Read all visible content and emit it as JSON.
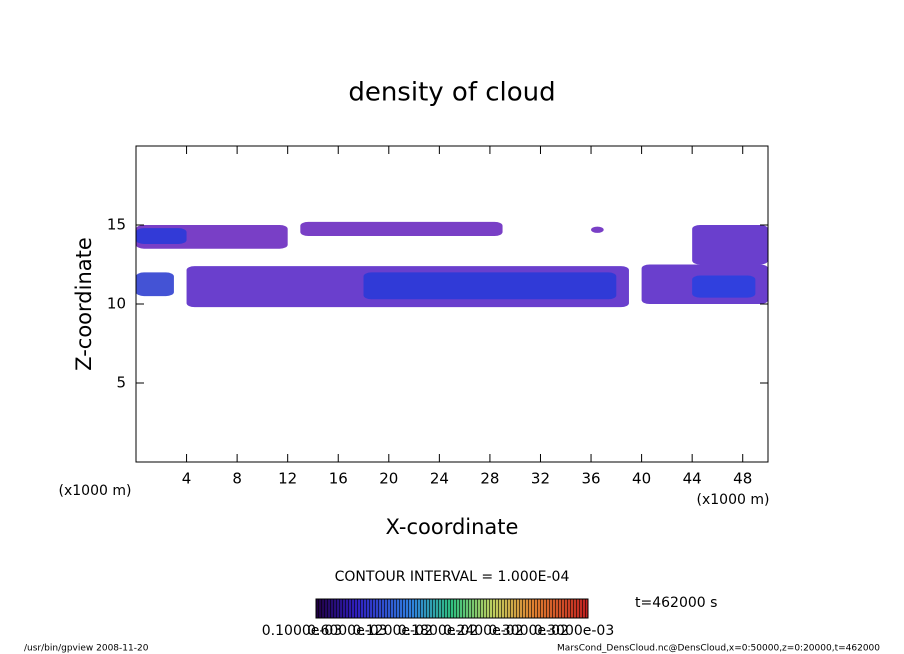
{
  "chart_data": {
    "type": "contour",
    "title": "density of cloud",
    "x_label": "X-coordinate",
    "y_label": "Z-coordinate",
    "x_unit": "(x1000 m)",
    "y_unit": "(x1000 m)",
    "xlim": [
      0,
      50
    ],
    "ylim": [
      0,
      20
    ],
    "xticks": [
      4,
      8,
      12,
      16,
      20,
      24,
      28,
      32,
      36,
      40,
      44,
      48
    ],
    "yticks": [
      5,
      10,
      15
    ],
    "regions": [
      {
        "x": [
          0,
          12
        ],
        "z": [
          13.5,
          15
        ],
        "color": "#6a2ac0"
      },
      {
        "x": [
          0,
          4
        ],
        "z": [
          13.8,
          14.8
        ],
        "color": "#2a3ad8"
      },
      {
        "x": [
          13,
          29
        ],
        "z": [
          14.3,
          15.2
        ],
        "color": "#6a2ac0"
      },
      {
        "x": [
          36,
          37
        ],
        "z": [
          14.5,
          14.9
        ],
        "color": "#6a2ac0"
      },
      {
        "x": [
          44,
          50
        ],
        "z": [
          12.5,
          15
        ],
        "color": "#5a2ac8"
      },
      {
        "x": [
          0,
          3
        ],
        "z": [
          10.5,
          12
        ],
        "color": "#3040d0"
      },
      {
        "x": [
          4,
          39
        ],
        "z": [
          9.8,
          12.4
        ],
        "color": "#5a2ac8"
      },
      {
        "x": [
          18,
          38
        ],
        "z": [
          10.3,
          12
        ],
        "color": "#2a3ad8"
      },
      {
        "x": [
          40,
          50
        ],
        "z": [
          10,
          12.5
        ],
        "color": "#5a2ac8"
      },
      {
        "x": [
          44,
          49
        ],
        "z": [
          10.4,
          11.8
        ],
        "color": "#2a40e0"
      }
    ],
    "contour_interval": "CONTOUR INTERVAL = 1.000E-04",
    "time_label": "t=462000 s",
    "colorbar_labels": [
      "0.1000e-03",
      "0.6000e-03",
      "0.1200e-02",
      "0.1800e-02",
      "0.2400e-02",
      "0.3000e-02",
      "0.3000e-03"
    ],
    "footer_left": "/usr/bin/gpview   2008-11-20",
    "footer_right": "MarsCond_DensCloud.nc@DensCloud,x=0:50000,z=0:20000,t=462000"
  }
}
